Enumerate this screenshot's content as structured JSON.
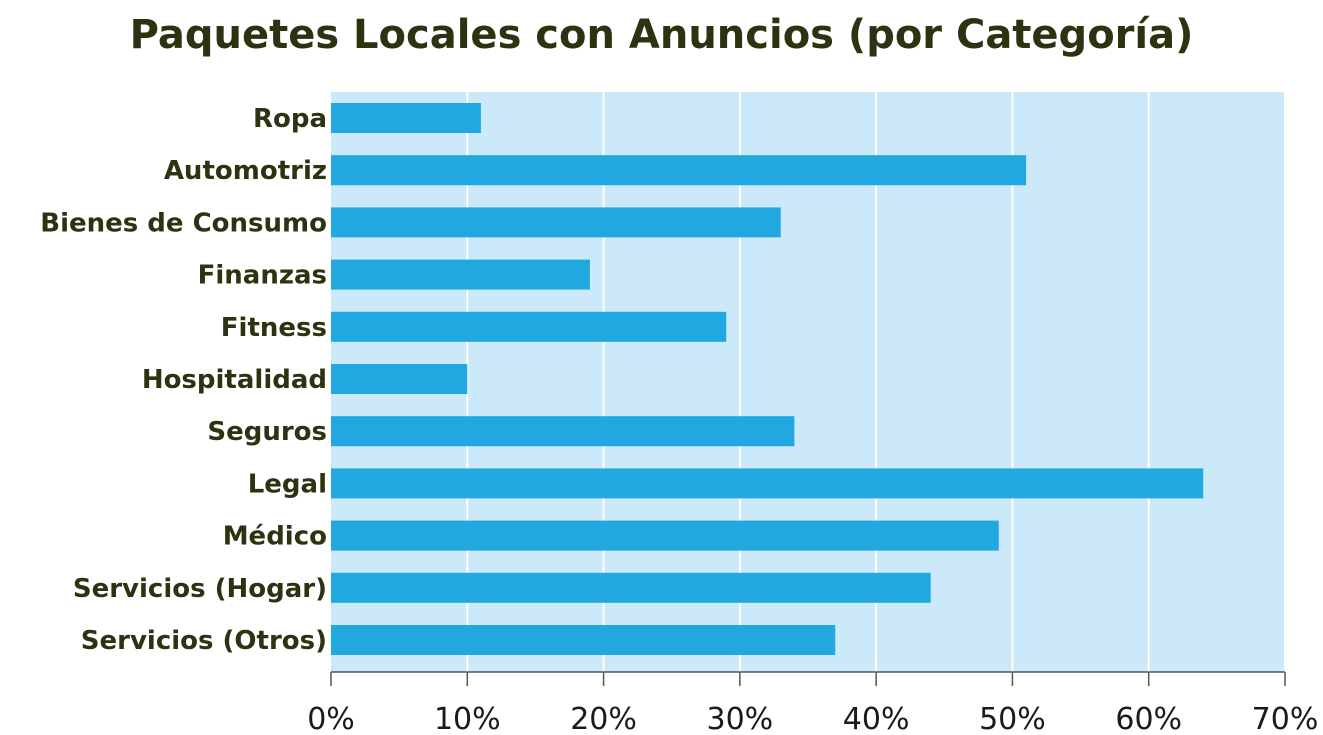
{
  "chart_data": {
    "type": "bar",
    "orientation": "horizontal",
    "title": "Paquetes Locales con Anuncios (por Categoría)",
    "xlabel": "",
    "ylabel": "",
    "categories": [
      "Ropa",
      "Automotriz",
      "Bienes de Consumo",
      "Finanzas",
      "Fitness",
      "Hospitalidad",
      "Seguros",
      "Legal",
      "Médico",
      "Servicios (Hogar)",
      "Servicios (Otros)"
    ],
    "values": [
      11,
      51,
      33,
      19,
      29,
      10,
      34,
      64,
      49,
      44,
      37
    ],
    "xlim": [
      0,
      70
    ],
    "x_ticks": [
      0,
      10,
      20,
      30,
      40,
      50,
      60,
      70
    ],
    "x_tick_labels": [
      "0%",
      "10%",
      "20%",
      "30%",
      "40%",
      "50%",
      "60%",
      "70%"
    ],
    "grid": true,
    "legend": "none",
    "colors": {
      "bar": "#22a8e0",
      "plot_background": "#cbe9f8",
      "grid": "#ffffff",
      "title": "#2b3311",
      "category_text": "#2b3311"
    }
  }
}
